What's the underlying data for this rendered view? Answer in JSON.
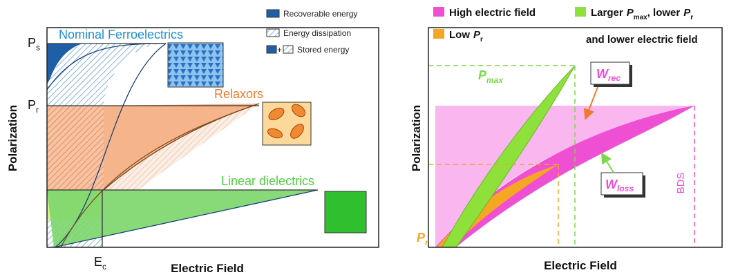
{
  "left": {
    "y_axis_label": "Polarization",
    "x_axis_label": "Electric Field",
    "ps": {
      "main": "P",
      "sub": "s"
    },
    "pr": {
      "main": "P",
      "sub": "r"
    },
    "ec": {
      "main": "E",
      "sub": "c"
    },
    "regions": [
      "Nominal Ferroelectrics",
      "Relaxors",
      "Linear dielectrics"
    ],
    "legend": [
      "Recoverable energy",
      "Energy dissipation",
      "Stored energy"
    ]
  },
  "right": {
    "y_axis_label": "Polarization",
    "x_axis_label": "Electric Field",
    "legend": {
      "high_field": "High electric field",
      "low_pr": [
        "Low",
        {
          "main": "P",
          "sub": "r"
        }
      ],
      "larger": [
        "Larger",
        {
          "main": "P",
          "sub": "max"
        },
        ", lower",
        {
          "main": "P",
          "sub": "r"
        }
      ],
      "larger_line2": "and lower electric field"
    },
    "pmax": {
      "main": "P",
      "sub": "max"
    },
    "pr": {
      "main": "P",
      "sub": "r"
    },
    "wrec": {
      "main": "W",
      "sub": "rec"
    },
    "wloss": {
      "main": "W",
      "sub": "loss"
    },
    "bds": "BDS"
  }
}
